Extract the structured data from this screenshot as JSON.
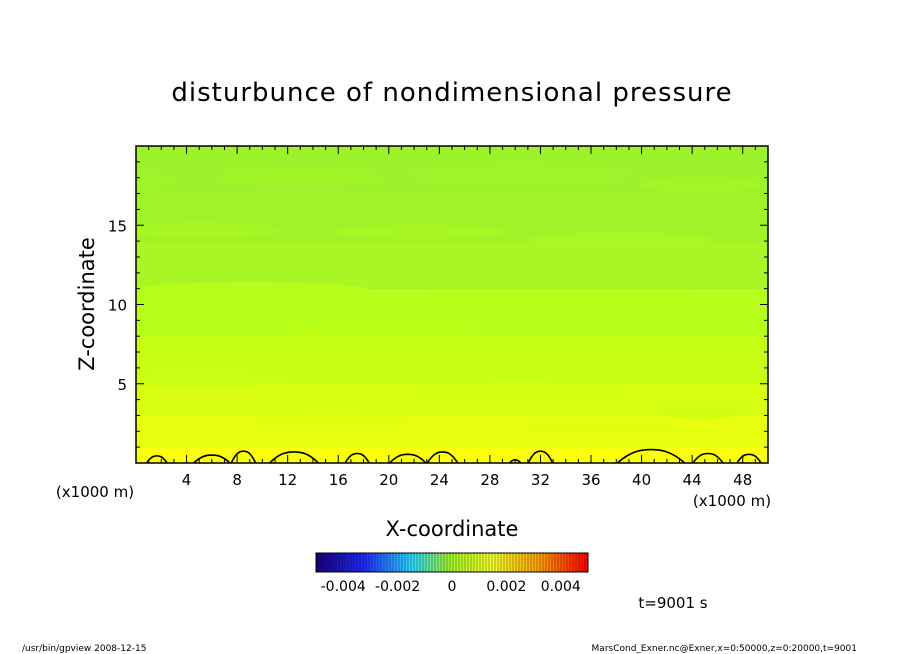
{
  "chart_data": {
    "type": "heatmap",
    "title": "disturbunce of nondimensional pressure",
    "xlabel": "X-coordinate",
    "ylabel": "Z-coordinate",
    "x_unit": "(x1000 m)",
    "z_unit": "(x1000 m)",
    "xlim": [
      0,
      50
    ],
    "ylim": [
      0,
      20
    ],
    "x_ticks": [
      4,
      8,
      12,
      16,
      20,
      24,
      28,
      32,
      36,
      40,
      44,
      48
    ],
    "y_ticks": [
      5,
      10,
      15
    ],
    "colorbar": {
      "range": [
        -0.005,
        0.005
      ],
      "tick_labels": [
        "-0.004",
        "-0.002",
        "0",
        "0.002",
        "0.004"
      ],
      "tick_values": [
        -0.004,
        -0.002,
        0,
        0.002,
        0.004
      ]
    },
    "field_bands": [
      {
        "z": [
          0,
          1
        ],
        "value": 0.0025,
        "color": "#fbff0c"
      },
      {
        "z": [
          1,
          3
        ],
        "value": 0.0021,
        "color": "#e8ff10"
      },
      {
        "z": [
          3,
          5
        ],
        "value": 0.0018,
        "color": "#d8ff12"
      },
      {
        "z": [
          5,
          8
        ],
        "value": 0.0014,
        "color": "#c6ff14"
      },
      {
        "z": [
          8,
          11
        ],
        "value": 0.0011,
        "color": "#b6ff1a"
      },
      {
        "z": [
          11,
          14
        ],
        "value": 0.0008,
        "color": "#a8f724"
      },
      {
        "z": [
          14,
          17
        ],
        "value": 0.0006,
        "color": "#a2f22a"
      },
      {
        "z": [
          17,
          20
        ],
        "value": 0.0005,
        "color": "#9ef22c"
      }
    ],
    "contour_bumps": [
      {
        "x": [
          0.8,
          2.5
        ],
        "z_peak": 0.45
      },
      {
        "x": [
          4.5,
          7.5
        ],
        "z_peak": 0.5
      },
      {
        "x": [
          7.5,
          9.5
        ],
        "z_peak": 0.75
      },
      {
        "x": [
          10.5,
          14.5
        ],
        "z_peak": 0.7
      },
      {
        "x": [
          16.5,
          18.5
        ],
        "z_peak": 0.6
      },
      {
        "x": [
          20.0,
          23.0
        ],
        "z_peak": 0.55
      },
      {
        "x": [
          23.0,
          25.5
        ],
        "z_peak": 0.7
      },
      {
        "x": [
          29.5,
          30.5
        ],
        "z_peak": 0.2
      },
      {
        "x": [
          31.0,
          33.0
        ],
        "z_peak": 0.75
      },
      {
        "x": [
          38.0,
          43.5
        ],
        "z_peak": 0.85
      },
      {
        "x": [
          44.0,
          46.5
        ],
        "z_peak": 0.6
      },
      {
        "x": [
          47.5,
          49.5
        ],
        "z_peak": 0.55
      }
    ]
  },
  "annotations": {
    "time": "t=9001 s",
    "footer_left": "/usr/bin/gpview   2008-12-15",
    "footer_right": "MarsCond_Exner.nc@Exner,x=0:50000,z=0:20000,t=9001"
  },
  "colors": {
    "negative_end": "#1a007a",
    "zero": "#a8f724",
    "positive_end": "#ff0000"
  }
}
